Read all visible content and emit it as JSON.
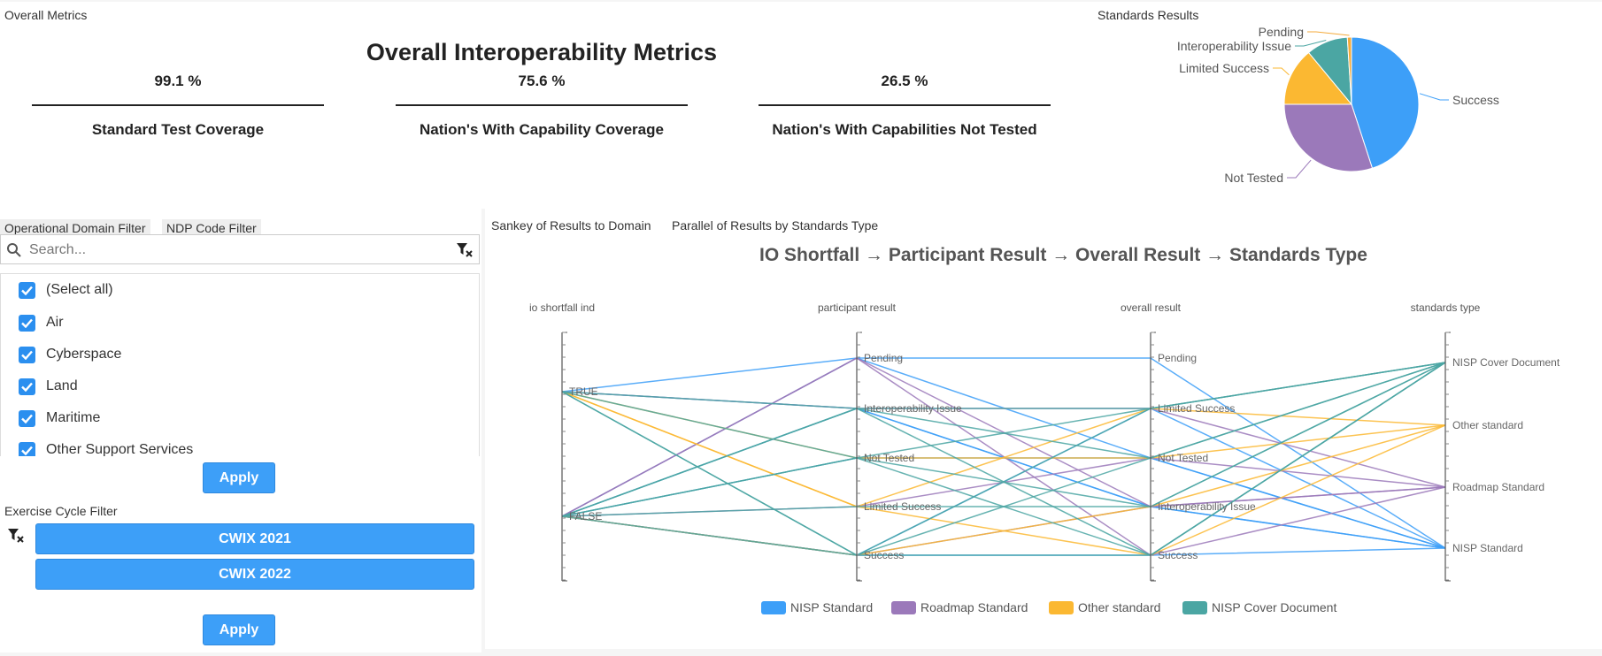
{
  "metrics_panel": {
    "title": "Overall Metrics",
    "heading": "Overall Interoperability Metrics",
    "metrics": [
      {
        "value": "99.1 %",
        "label": "Standard Test Coverage"
      },
      {
        "value": "75.6 %",
        "label": "Nation's With Capability Coverage"
      },
      {
        "value": "26.5 %",
        "label": "Nation's With Capabilities Not Tested"
      }
    ]
  },
  "standards_panel": {
    "title": "Standards Results",
    "chart_data": {
      "type": "pie",
      "labels": [
        "Success",
        "Not Tested",
        "Limited Success",
        "Interoperability Issue",
        "Pending"
      ],
      "values": [
        45,
        30,
        14,
        10,
        1
      ],
      "colors": [
        "#3d9ff8",
        "#9b79ba",
        "#fbb832",
        "#4ba6a3",
        "#f4aa3a"
      ]
    }
  },
  "filters": {
    "tabs": [
      "Operational Domain Filter",
      "NDP Code Filter"
    ],
    "search_placeholder": "Search...",
    "items": [
      "(Select all)",
      "Air",
      "Cyberspace",
      "Land",
      "Maritime",
      "Other Support Services"
    ],
    "apply_label": "Apply",
    "exercise_title": "Exercise Cycle Filter",
    "cycles": [
      "CWIX 2021",
      "CWIX 2022"
    ],
    "apply2_label": "Apply"
  },
  "results_panel": {
    "tabs": [
      "Sankey of Results to Domain",
      "Parallel of Results by Standards Type"
    ],
    "chart_data": {
      "type": "parallel",
      "title": "IO Shortfall → Participant Result → Overall Result → Standards Type",
      "axes": [
        {
          "name": "io shortfall ind",
          "ticks": [
            "TRUE",
            "FALSE"
          ]
        },
        {
          "name": "participant result",
          "ticks": [
            "Pending",
            "Interoperability Issue",
            "Not Tested",
            "Limited Success",
            "Success"
          ]
        },
        {
          "name": "overall result",
          "ticks": [
            "Pending",
            "Limited Success",
            "Not Tested",
            "Interoperability Issue",
            "Success"
          ]
        },
        {
          "name": "standards type",
          "ticks": [
            "NISP Cover Document",
            "Other standard",
            "Roadmap Standard",
            "NISP Standard"
          ]
        }
      ],
      "series": [
        {
          "name": "NISP Standard",
          "color": "#3d9ff8",
          "lines": [
            [
              "FALSE",
              "Pending",
              "Pending",
              "NISP Standard"
            ],
            [
              "FALSE",
              "Interoperability Issue",
              "Interoperability Issue",
              "NISP Standard"
            ],
            [
              "TRUE",
              "Interoperability Issue",
              "Interoperability Issue",
              "NISP Standard"
            ],
            [
              "FALSE",
              "Success",
              "Limited Success",
              "NISP Standard"
            ],
            [
              "FALSE",
              "Not Tested",
              "Not Tested",
              "NISP Standard"
            ],
            [
              "FALSE",
              "Success",
              "Success",
              "NISP Standard"
            ],
            [
              "TRUE",
              "Pending",
              "Not Tested",
              "NISP Standard"
            ]
          ]
        },
        {
          "name": "Roadmap Standard",
          "color": "#9b79ba",
          "lines": [
            [
              "FALSE",
              "Pending",
              "Interoperability Issue",
              "Roadmap Standard"
            ],
            [
              "TRUE",
              "Interoperability Issue",
              "Limited Success",
              "Roadmap Standard"
            ],
            [
              "FALSE",
              "Success",
              "Interoperability Issue",
              "Roadmap Standard"
            ],
            [
              "FALSE",
              "Limited Success",
              "Not Tested",
              "Roadmap Standard"
            ],
            [
              "FALSE",
              "Pending",
              "Success",
              "Roadmap Standard"
            ]
          ]
        },
        {
          "name": "Other standard",
          "color": "#fbb832",
          "lines": [
            [
              "TRUE",
              "Limited Success",
              "Limited Success",
              "Other standard"
            ],
            [
              "TRUE",
              "Not Tested",
              "Not Tested",
              "Other standard"
            ],
            [
              "FALSE",
              "Success",
              "Interoperability Issue",
              "Other standard"
            ],
            [
              "TRUE",
              "Limited Success",
              "Success",
              "Other standard"
            ]
          ]
        },
        {
          "name": "NISP Cover Document",
          "color": "#4ba6a3",
          "lines": [
            [
              "TRUE",
              "Interoperability Issue",
              "Limited Success",
              "NISP Cover Document"
            ],
            [
              "FALSE",
              "Interoperability Issue",
              "Success",
              "NISP Cover Document"
            ],
            [
              "FALSE",
              "Not Tested",
              "Limited Success",
              "NISP Cover Document"
            ],
            [
              "TRUE",
              "Success",
              "Not Tested",
              "NISP Cover Document"
            ],
            [
              "FALSE",
              "Limited Success",
              "Interoperability Issue",
              "NISP Cover Document"
            ],
            [
              "FALSE",
              "Success",
              "Success",
              "NISP Cover Document"
            ],
            [
              "TRUE",
              "Not Tested",
              "Interoperability Issue",
              "NISP Cover Document"
            ],
            [
              "FALSE",
              "Interoperability Issue",
              "Not Tested",
              "NISP Cover Document"
            ],
            [
              "TRUE",
              "Success",
              "Limited Success",
              "NISP Cover Document"
            ],
            [
              "FALSE",
              "Not Tested",
              "Success",
              "NISP Cover Document"
            ]
          ]
        }
      ]
    }
  }
}
